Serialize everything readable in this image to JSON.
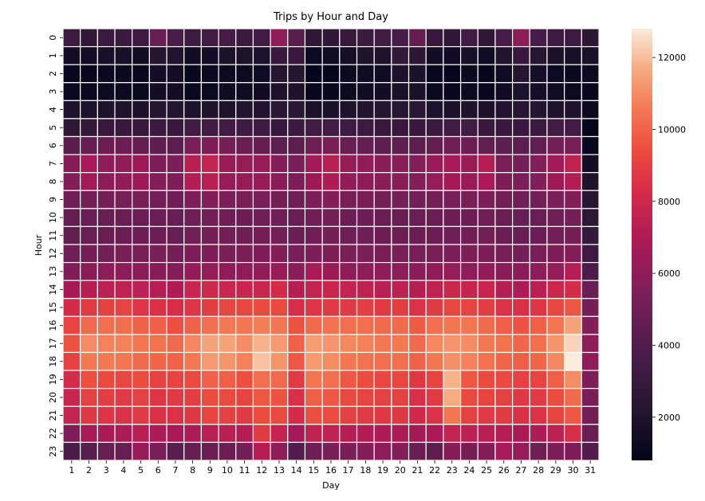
{
  "chart_data": {
    "type": "heatmap",
    "title": "Trips by Hour and Day",
    "xlabel": "Day",
    "ylabel": "Hour",
    "x_categories": [
      "1",
      "2",
      "3",
      "4",
      "5",
      "6",
      "7",
      "8",
      "9",
      "10",
      "11",
      "12",
      "13",
      "14",
      "15",
      "16",
      "17",
      "18",
      "19",
      "20",
      "21",
      "22",
      "23",
      "24",
      "25",
      "26",
      "27",
      "28",
      "29",
      "30",
      "31"
    ],
    "y_categories": [
      "0",
      "1",
      "2",
      "3",
      "4",
      "5",
      "6",
      "7",
      "8",
      "9",
      "10",
      "11",
      "12",
      "13",
      "14",
      "15",
      "16",
      "17",
      "18",
      "19",
      "20",
      "21",
      "22",
      "23"
    ],
    "colorbar": {
      "min": 800,
      "max": 12800,
      "ticks": [
        2000,
        4000,
        6000,
        8000,
        10000,
        12000
      ],
      "tick_labels": [
        "2000",
        "4000",
        "6000",
        "8000",
        "10000",
        "12000"
      ]
    },
    "values": [
      [
        3200,
        2700,
        3100,
        3100,
        3200,
        4700,
        3700,
        3200,
        3300,
        3500,
        3100,
        3400,
        6000,
        4200,
        2600,
        2700,
        2900,
        3100,
        3400,
        3600,
        4600,
        3000,
        2600,
        3400,
        2600,
        3600,
        5900,
        3600,
        3200,
        3200,
        2500
      ],
      [
        1500,
        1500,
        1700,
        1700,
        1400,
        2200,
        2100,
        1400,
        1500,
        1800,
        1900,
        1900,
        3000,
        3000,
        1200,
        1300,
        1600,
        2000,
        2000,
        2800,
        2500,
        1500,
        1400,
        1700,
        1300,
        2100,
        3000,
        2300,
        1800,
        1700,
        1800
      ],
      [
        1000,
        1000,
        1100,
        1100,
        1000,
        1500,
        1500,
        1000,
        1100,
        1200,
        1200,
        1300,
        2200,
        2200,
        900,
        900,
        1100,
        1300,
        1400,
        1900,
        1800,
        1000,
        900,
        1100,
        900,
        1400,
        2200,
        1600,
        1200,
        1100,
        1200
      ],
      [
        1100,
        1100,
        1200,
        1200,
        1100,
        1500,
        1500,
        1100,
        1200,
        1300,
        1300,
        1400,
        2000,
        2000,
        1000,
        1000,
        1200,
        1400,
        1500,
        1800,
        1800,
        1100,
        1000,
        1200,
        1000,
        1400,
        1900,
        1600,
        1300,
        1200,
        1000
      ],
      [
        1900,
        1900,
        2000,
        2000,
        1800,
        2200,
        2200,
        1900,
        2000,
        2000,
        2100,
        2100,
        2400,
        2400,
        1800,
        1800,
        2000,
        2100,
        2200,
        2300,
        2400,
        1900,
        1800,
        2000,
        1800,
        2100,
        2300,
        2200,
        2000,
        2000,
        1100
      ],
      [
        2600,
        2800,
        3000,
        3000,
        2900,
        3100,
        3000,
        3300,
        3400,
        3400,
        3200,
        3200,
        3000,
        3100,
        3300,
        3400,
        3200,
        3200,
        3000,
        3000,
        3000,
        3100,
        3400,
        3300,
        3000,
        3000,
        3000,
        3100,
        3400,
        3400,
        900
      ],
      [
        4200,
        4600,
        4900,
        4900,
        4600,
        4400,
        4300,
        5300,
        5500,
        5200,
        4800,
        4600,
        4300,
        4300,
        5000,
        5300,
        4800,
        4600,
        4300,
        4400,
        4300,
        4600,
        5000,
        4900,
        4500,
        4400,
        4300,
        4500,
        5200,
        5300,
        1000
      ],
      [
        5700,
        6800,
        6000,
        6100,
        6500,
        5500,
        5400,
        7300,
        7600,
        6300,
        6200,
        6300,
        5700,
        5300,
        6600,
        7300,
        6200,
        6100,
        5800,
        5800,
        5600,
        6300,
        6800,
        6400,
        7200,
        5300,
        5200,
        5600,
        6600,
        7500,
        1500
      ],
      [
        5600,
        6600,
        6000,
        6100,
        6500,
        5600,
        5500,
        7100,
        7300,
        6200,
        6200,
        6300,
        5800,
        5500,
        6500,
        7000,
        6100,
        6000,
        5800,
        5800,
        5600,
        6200,
        6700,
        6300,
        6900,
        5500,
        5400,
        5600,
        6500,
        7100,
        2000
      ],
      [
        5000,
        5200,
        5200,
        5300,
        5300,
        5100,
        5000,
        5500,
        5600,
        5400,
        5300,
        5300,
        5200,
        5000,
        5400,
        5600,
        5300,
        5300,
        5200,
        5200,
        5100,
        5200,
        5300,
        5300,
        5400,
        5100,
        5000,
        5100,
        5400,
        5600,
        2300
      ],
      [
        4600,
        4700,
        4700,
        4800,
        4800,
        4800,
        4700,
        5000,
        5100,
        5000,
        4900,
        5000,
        5000,
        4800,
        5000,
        5100,
        4900,
        4900,
        4800,
        4800,
        4800,
        4800,
        4900,
        4900,
        5000,
        4800,
        4700,
        4800,
        5000,
        5100,
        2600
      ],
      [
        4500,
        4800,
        4800,
        4900,
        4900,
        4900,
        4700,
        5100,
        5200,
        5100,
        5000,
        5100,
        5200,
        4900,
        5000,
        5100,
        5000,
        5000,
        4900,
        4900,
        4900,
        4900,
        5000,
        5000,
        5100,
        4900,
        4800,
        4900,
        5100,
        5200,
        2800
      ],
      [
        5000,
        5200,
        5200,
        5300,
        5300,
        5300,
        5100,
        5500,
        5500,
        5400,
        5400,
        5500,
        5600,
        5300,
        5400,
        5500,
        5400,
        5400,
        5300,
        5300,
        5300,
        5300,
        5400,
        5400,
        5500,
        5300,
        5200,
        5300,
        5500,
        5600,
        3200
      ],
      [
        5500,
        5800,
        5900,
        5900,
        5800,
        5700,
        5600,
        6100,
        6200,
        6000,
        6000,
        6100,
        6300,
        5800,
        6900,
        6400,
        6000,
        6000,
        5900,
        5900,
        5800,
        6000,
        6200,
        6000,
        6100,
        5800,
        5800,
        5900,
        6200,
        7200,
        3700
      ],
      [
        6700,
        7200,
        7400,
        7500,
        7400,
        7200,
        7000,
        7800,
        8000,
        7800,
        7800,
        7800,
        8200,
        7200,
        7600,
        7800,
        7600,
        7500,
        7300,
        7400,
        7200,
        7500,
        7900,
        7700,
        7800,
        7200,
        7000,
        7300,
        7900,
        8200,
        4700
      ],
      [
        8200,
        8800,
        9000,
        9100,
        8600,
        8400,
        8300,
        8600,
        8900,
        9200,
        9200,
        9300,
        9300,
        8300,
        8600,
        8800,
        8800,
        8900,
        8800,
        8900,
        8500,
        8800,
        9200,
        9100,
        8900,
        8500,
        8400,
        8600,
        9200,
        9700,
        5200
      ],
      [
        9100,
        10200,
        10300,
        10300,
        10000,
        9900,
        9500,
        10000,
        10300,
        10600,
        10500,
        10700,
        10500,
        9600,
        10200,
        10400,
        10300,
        10300,
        10200,
        10200,
        9800,
        10300,
        10500,
        10500,
        10200,
        9900,
        9600,
        9900,
        10500,
        11500,
        5600
      ],
      [
        9600,
        11000,
        10800,
        10800,
        10500,
        10400,
        10200,
        10900,
        11500,
        11500,
        11000,
        11800,
        11300,
        10000,
        11400,
        11200,
        10900,
        10800,
        10600,
        10600,
        10200,
        10900,
        11200,
        11000,
        10600,
        10400,
        10100,
        10300,
        11200,
        12400,
        5900
      ],
      [
        9000,
        10600,
        10600,
        10500,
        10200,
        10100,
        10000,
        10600,
        11300,
        11200,
        10800,
        12100,
        11200,
        9700,
        11300,
        11000,
        10500,
        10400,
        10300,
        10300,
        10000,
        10500,
        11100,
        10800,
        10400,
        10100,
        9900,
        10100,
        10900,
        12800,
        6000
      ],
      [
        8200,
        9500,
        9300,
        9200,
        9400,
        9000,
        9100,
        9300,
        10000,
        9900,
        9500,
        10300,
        10200,
        8800,
        10500,
        10300,
        9700,
        9400,
        9200,
        9200,
        8700,
        9100,
        11800,
        9700,
        9300,
        9300,
        9000,
        9100,
        9900,
        11000,
        5500
      ],
      [
        7800,
        9000,
        8900,
        8800,
        9000,
        8600,
        8800,
        8900,
        9400,
        9300,
        9100,
        9700,
        9600,
        8400,
        9900,
        9700,
        9300,
        9100,
        9000,
        9000,
        8400,
        8800,
        11700,
        9300,
        9100,
        9000,
        8700,
        8800,
        9400,
        10200,
        5300
      ],
      [
        7600,
        8700,
        8600,
        8500,
        8800,
        8400,
        8500,
        8700,
        9100,
        9000,
        8800,
        9400,
        9300,
        8200,
        9500,
        9400,
        9000,
        8800,
        8700,
        8700,
        8100,
        8500,
        10500,
        9000,
        8800,
        8800,
        8400,
        8500,
        9100,
        9700,
        5100
      ],
      [
        5500,
        6800,
        6900,
        7000,
        7300,
        7000,
        6800,
        7000,
        7300,
        7300,
        7200,
        8800,
        7700,
        6600,
        7500,
        7500,
        7200,
        7100,
        7000,
        7000,
        6700,
        6900,
        7600,
        7400,
        7300,
        7200,
        6900,
        7000,
        7400,
        8300,
        4800
      ],
      [
        3700,
        4200,
        4700,
        4800,
        6200,
        5300,
        4200,
        4600,
        4800,
        4900,
        5200,
        7200,
        6000,
        4000,
        5000,
        5400,
        5400,
        5700,
        6000,
        5600,
        4800,
        4400,
        5700,
        5200,
        5700,
        6800,
        6200,
        5000,
        5400,
        5500,
        4000
      ]
    ]
  }
}
